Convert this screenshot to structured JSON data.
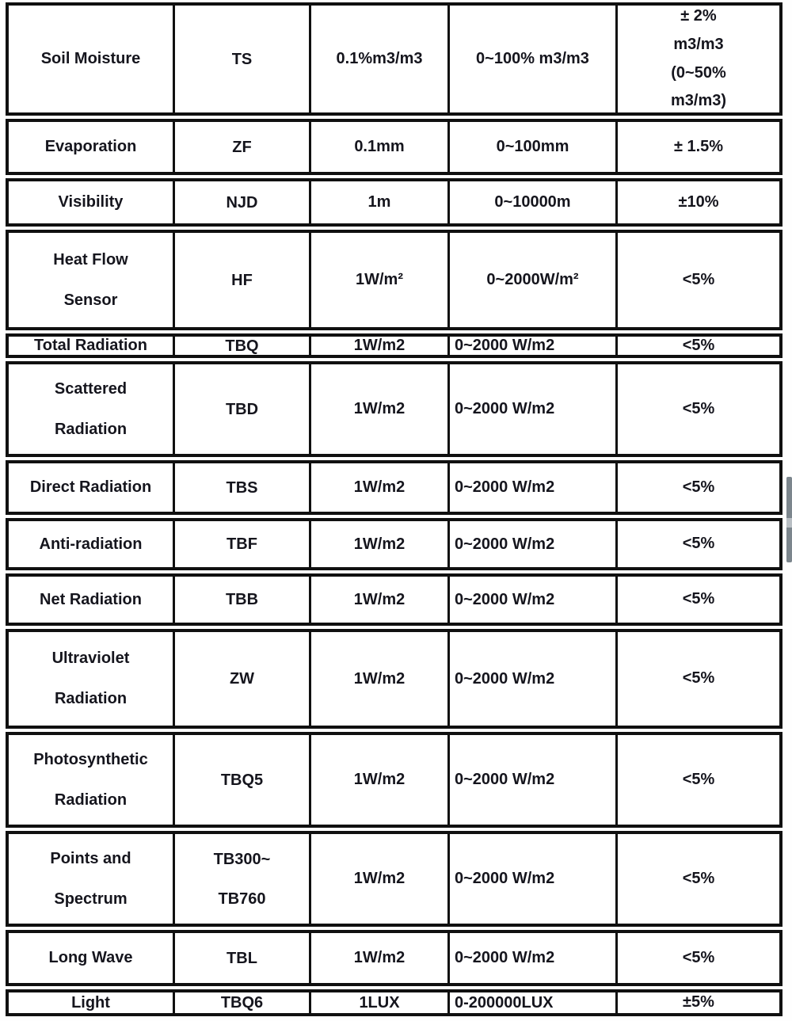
{
  "colors": {
    "text": "#15151d",
    "border": "#101010",
    "scrollbar": "#7c868d",
    "scrollbar_notch": "#b9bfc4",
    "page_background": "#ffffff"
  },
  "table": {
    "rows": [
      [
        "Soil Moisture",
        "TS",
        "0.1%m3/m3",
        "0~100% m3/m3",
        "± 2%\nm3/m3\n(0~50%\nm3/m3)"
      ],
      [
        "Evaporation",
        "ZF",
        "0.1mm",
        "0~100mm",
        "± 1.5%"
      ],
      [
        "Visibility",
        "NJD",
        "1m",
        "0~10000m",
        "±10%"
      ],
      [
        "Heat Flow\nSensor",
        "HF",
        "1W/m²",
        "0~2000W/m²",
        "<5%"
      ],
      [
        "Total Radiation",
        "TBQ",
        "1W/m2",
        "0~2000 W/m2",
        "<5%"
      ],
      [
        "Scattered\nRadiation",
        "TBD",
        "1W/m2",
        "0~2000 W/m2",
        "<5%"
      ],
      [
        "Direct Radiation",
        "TBS",
        "1W/m2",
        "0~2000 W/m2",
        "<5%"
      ],
      [
        "Anti-radiation",
        "TBF",
        "1W/m2",
        "0~2000 W/m2",
        "<5%"
      ],
      [
        "Net Radiation",
        "TBB",
        "1W/m2",
        "0~2000 W/m2",
        "<5%"
      ],
      [
        "Ultraviolet\nRadiation",
        "ZW",
        "1W/m2",
        "0~2000 W/m2",
        "<5%"
      ],
      [
        "Photosynthetic\nRadiation",
        "TBQ5",
        "1W/m2",
        "0~2000 W/m2",
        "<5%"
      ],
      [
        "Points and\nSpectrum",
        "TB300~\nTB760",
        "1W/m2",
        "0~2000 W/m2",
        "<5%"
      ],
      [
        "Long Wave",
        "TBL",
        "1W/m2",
        "0~2000 W/m2",
        "<5%"
      ],
      [
        "Light",
        "TBQ6",
        "1LUX",
        "0-200000LUX",
        "±5%"
      ]
    ]
  }
}
